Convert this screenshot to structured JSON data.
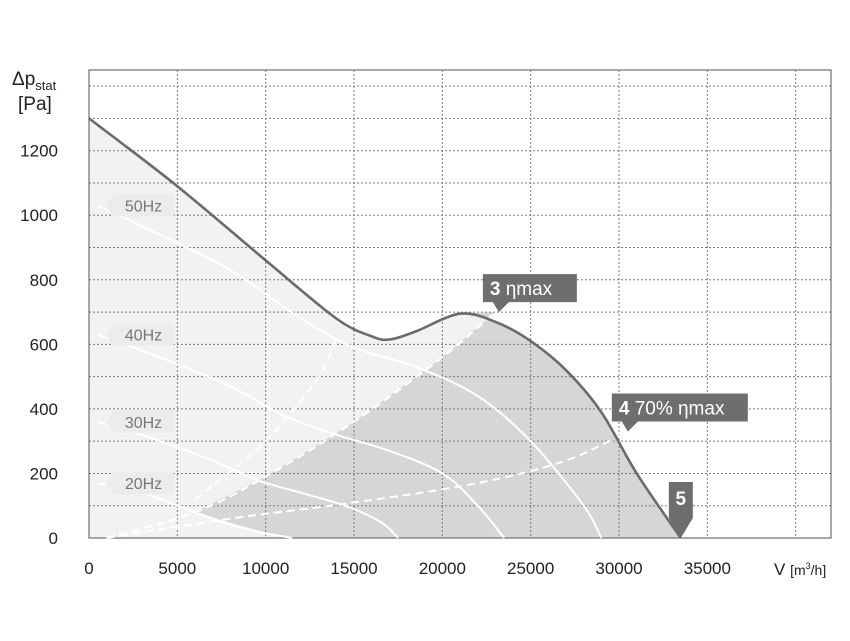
{
  "chart_data": {
    "type": "line",
    "ylabel": {
      "main": "Δp",
      "sub": "stat",
      "unit": "[Pa]"
    },
    "xlabel": {
      "main": "V",
      "unit_open": "[m",
      "unit_sup": "3",
      "unit_close": "/h]"
    },
    "xlim": [
      0,
      42000
    ],
    "ylim": [
      0,
      1450
    ],
    "x_ticks": [
      0,
      5000,
      10000,
      15000,
      20000,
      25000,
      30000,
      35000
    ],
    "y_ticks": [
      0,
      200,
      400,
      600,
      800,
      1000,
      1200
    ],
    "grid": true,
    "max_curve": {
      "name": "max",
      "x": [
        0,
        5000,
        10000,
        14000,
        16000,
        17000,
        18500,
        21000,
        23000,
        25000,
        27000,
        29000,
        31000,
        33500
      ],
      "y": [
        1300,
        1090,
        860,
        680,
        625,
        615,
        640,
        695,
        670,
        610,
        520,
        390,
        200,
        0
      ]
    },
    "efficiency_lines": [
      {
        "name": "3 ηmax",
        "x": [
          1000,
          6000,
          10000,
          15000,
          20000,
          23000
        ],
        "y": [
          0,
          80,
          190,
          360,
          560,
          700
        ],
        "style": "dashed"
      },
      {
        "name": "4 70% ηmax",
        "x": [
          1000,
          8000,
          15000,
          22000,
          27000,
          30500
        ],
        "y": [
          0,
          60,
          110,
          170,
          240,
          330
        ],
        "style": "dashed"
      },
      {
        "name": "70% ηmax (left)",
        "x": [
          6000,
          9000,
          11000,
          13000,
          14000
        ],
        "y": [
          120,
          250,
          360,
          500,
          620
        ],
        "style": "dashed"
      }
    ],
    "speed_curves": [
      {
        "name": "50Hz",
        "x": [
          500,
          4000,
          8000,
          12000,
          15000,
          18500,
          22000,
          25000,
          28000,
          29000
        ],
        "y": [
          1030,
          940,
          830,
          680,
          590,
          530,
          440,
          300,
          100,
          0
        ]
      },
      {
        "name": "40Hz",
        "x": [
          500,
          4000,
          8000,
          11000,
          14000,
          17000,
          20000,
          22000,
          23500
        ],
        "y": [
          630,
          560,
          470,
          380,
          320,
          270,
          200,
          100,
          0
        ]
      },
      {
        "name": "30Hz",
        "x": [
          500,
          3500,
          7000,
          9500,
          12000,
          14500,
          16500,
          17500
        ],
        "y": [
          360,
          310,
          240,
          180,
          140,
          100,
          50,
          0
        ]
      },
      {
        "name": "20Hz",
        "x": [
          500,
          3000,
          5500,
          7500,
          9500,
          11000,
          11500
        ],
        "y": [
          170,
          140,
          90,
          50,
          20,
          5,
          0
        ]
      }
    ],
    "annotations": [
      {
        "num": "3",
        "label": "ηmax",
        "x": 23200,
        "y": 700
      },
      {
        "num": "4",
        "label": "70% ηmax",
        "x": 30500,
        "y": 330
      },
      {
        "num": "5",
        "label": "",
        "x": 33500,
        "y": 0
      }
    ]
  },
  "colors": {
    "max_curve": "#6b6b6b",
    "grid": "#7a7a7a",
    "light_region": "#f2f2f2",
    "dark_region": "#d6d6d6",
    "marker": "#6e6e6e",
    "freq_label_bg": "#ececec"
  }
}
